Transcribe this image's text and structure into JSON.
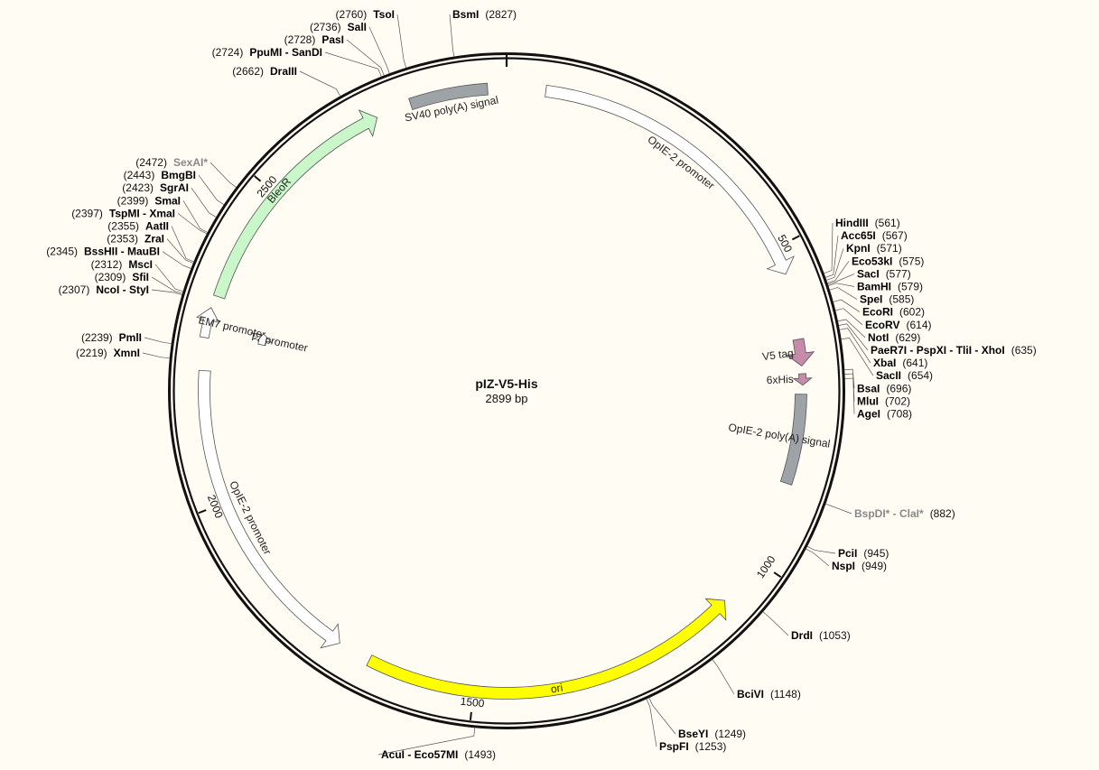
{
  "plasmid": {
    "name": "pIZ-V5-His",
    "size_label": "2899 bp",
    "length": 2899
  },
  "colors": {
    "background": "#fffcf4",
    "backbone": "#111111",
    "promoter": "#ffffff",
    "bleoR": "#c9f7c9",
    "ori": "#ffff00",
    "polyA": "#9ea3a8",
    "tag": "#c68aaa",
    "enzyme_gray": "#888888"
  },
  "ticks": [
    {
      "pos": 0,
      "label": ""
    },
    {
      "pos": 500,
      "label": "500"
    },
    {
      "pos": 1000,
      "label": "1000"
    },
    {
      "pos": 1500,
      "label": "1500"
    },
    {
      "pos": 2000,
      "label": "2000"
    },
    {
      "pos": 2500,
      "label": "2500"
    }
  ],
  "features": [
    {
      "name": "OpIE-2 promoter",
      "start": 60,
      "end": 542,
      "strand": 1,
      "color": "#ffffff",
      "lane": 0
    },
    {
      "name": "V5 tag",
      "start": 644,
      "end": 686,
      "strand": 1,
      "color": "#c68aaa",
      "lane": 1
    },
    {
      "name": "6xHis",
      "start": 698,
      "end": 716,
      "strand": 1,
      "color": "#c68aaa",
      "lane": 1
    },
    {
      "name": "OpIE-2 poly(A) signal",
      "start": 730,
      "end": 872,
      "strand": 0,
      "color": "#9ea3a8",
      "lane": 1
    },
    {
      "name": "ori",
      "start": 1078,
      "end": 1667,
      "strand": -1,
      "color": "#ffff00",
      "lane": 0
    },
    {
      "name": "OpIE-2 promoter",
      "start": 1719,
      "end": 2205,
      "strand": -1,
      "color": "#ffffff",
      "lane": 0
    },
    {
      "name": "EM7 promoter",
      "start": 2255,
      "end": 2301,
      "strand": 1,
      "color": "#ffffff",
      "lane": 0
    },
    {
      "name": "T7 promoter",
      "start": 2260,
      "end": 2280,
      "strand": 1,
      "color": "#ffffff",
      "lane": 1
    },
    {
      "name": "BleoR",
      "start": 2320,
      "end": 2695,
      "strand": 1,
      "color": "#c9f7c9",
      "lane": 0
    },
    {
      "name": "SV40 poly(A) signal",
      "start": 2750,
      "end": 2870,
      "strand": 0,
      "color": "#9ea3a8",
      "lane": 0
    }
  ],
  "enzymes": [
    {
      "name": "TsoI",
      "pos": 2760,
      "gray": false
    },
    {
      "name": "SalI",
      "pos": 2736,
      "gray": false
    },
    {
      "name": "PasI",
      "pos": 2728,
      "gray": false
    },
    {
      "name": "PpuMI - SanDI",
      "pos": 2724,
      "gray": false
    },
    {
      "name": "DraIII",
      "pos": 2662,
      "gray": false
    },
    {
      "name": "BsmI",
      "pos": 2827,
      "gray": false
    },
    {
      "name": "SexAI*",
      "pos": 2472,
      "gray": true
    },
    {
      "name": "BmgBI",
      "pos": 2443,
      "gray": false
    },
    {
      "name": "SgrAI",
      "pos": 2423,
      "gray": false
    },
    {
      "name": "SmaI",
      "pos": 2399,
      "gray": false
    },
    {
      "name": "TspMI - XmaI",
      "pos": 2397,
      "gray": false
    },
    {
      "name": "AatII",
      "pos": 2355,
      "gray": false
    },
    {
      "name": "ZraI",
      "pos": 2353,
      "gray": false
    },
    {
      "name": "BssHII - MauBI",
      "pos": 2345,
      "gray": false
    },
    {
      "name": "MscI",
      "pos": 2312,
      "gray": false
    },
    {
      "name": "SfiI",
      "pos": 2309,
      "gray": false
    },
    {
      "name": "NcoI - StyI",
      "pos": 2307,
      "gray": false
    },
    {
      "name": "PmlI",
      "pos": 2239,
      "gray": false
    },
    {
      "name": "XmnI",
      "pos": 2219,
      "gray": false
    },
    {
      "name": "AcuI - Eco57MI",
      "pos": 1493,
      "gray": false
    },
    {
      "name": "HindIII",
      "pos": 561,
      "gray": false
    },
    {
      "name": "Acc65I",
      "pos": 567,
      "gray": false
    },
    {
      "name": "KpnI",
      "pos": 571,
      "gray": false
    },
    {
      "name": "Eco53kI",
      "pos": 575,
      "gray": false
    },
    {
      "name": "SacI",
      "pos": 577,
      "gray": false
    },
    {
      "name": "BamHI",
      "pos": 579,
      "gray": false
    },
    {
      "name": "SpeI",
      "pos": 585,
      "gray": false
    },
    {
      "name": "EcoRI",
      "pos": 602,
      "gray": false
    },
    {
      "name": "EcoRV",
      "pos": 614,
      "gray": false
    },
    {
      "name": "NotI",
      "pos": 629,
      "gray": false
    },
    {
      "name": "PaeR7I - PspXI - TliI - XhoI",
      "pos": 635,
      "gray": false
    },
    {
      "name": "XbaI",
      "pos": 641,
      "gray": false
    },
    {
      "name": "SacII",
      "pos": 654,
      "gray": false
    },
    {
      "name": "BsaI",
      "pos": 696,
      "gray": false
    },
    {
      "name": "MluI",
      "pos": 702,
      "gray": false
    },
    {
      "name": "AgeI",
      "pos": 708,
      "gray": false
    },
    {
      "name": "BspDI* - ClaI*",
      "pos": 882,
      "gray": true
    },
    {
      "name": "PciI",
      "pos": 945,
      "gray": false
    },
    {
      "name": "NspI",
      "pos": 949,
      "gray": false
    },
    {
      "name": "DrdI",
      "pos": 1053,
      "gray": false
    },
    {
      "name": "BciVI",
      "pos": 1148,
      "gray": false
    },
    {
      "name": "BseYI",
      "pos": 1249,
      "gray": false
    },
    {
      "name": "PspFI",
      "pos": 1253,
      "gray": false
    }
  ]
}
